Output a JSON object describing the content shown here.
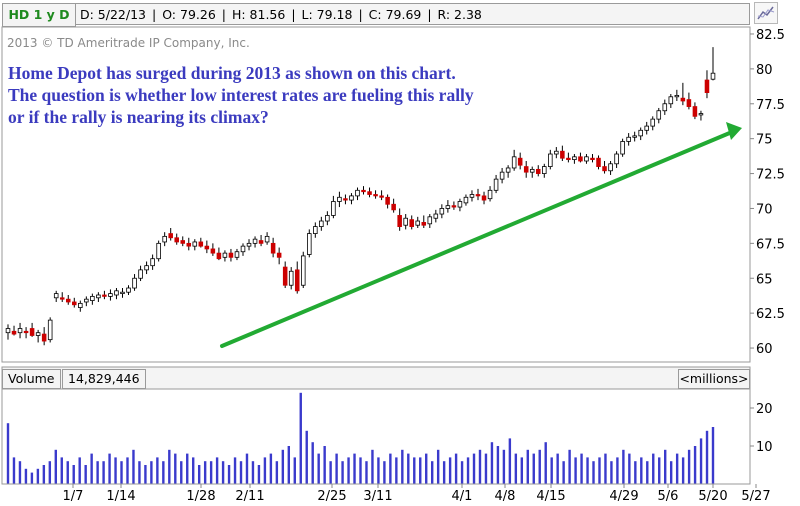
{
  "header": {
    "ticker_label": "HD 1 y D",
    "date": "D: 5/22/13",
    "open": "O: 79.26",
    "high": "H: 81.56",
    "low": "L: 79.18",
    "close": "C: 79.69",
    "range": "R: 2.38"
  },
  "copyright": "2013 © TD Ameritrade IP Company, Inc.",
  "annotation": "Home Depot has surged during 2013 as shown on this chart. The question is whether low interest rates are fueling this rally or if the rally is nearing its climax?",
  "volume_panel": {
    "label": "Volume",
    "value": "14,829,446",
    "units": "<millions>"
  },
  "colors": {
    "up_fill": "#ffffff",
    "down_fill": "#cc0000",
    "candle_outline": "#000000",
    "volume_bar": "#3a3acc",
    "trendline": "#22aa33",
    "annotation_text": "#3b3bbf",
    "ticker_text": "#1e8a1e"
  },
  "chart_data": [
    {
      "type": "candlestick",
      "ylim": [
        59,
        83
      ],
      "yticks": [
        60,
        62.5,
        65,
        67.5,
        70,
        72.5,
        75,
        77.5,
        80,
        82.5
      ],
      "ytick_labels": [
        "60",
        "62.5",
        "65",
        "67.5",
        "70",
        "72.5",
        "75",
        "77.5",
        "80",
        "82.5"
      ],
      "xtick_labels": [
        "1/7",
        "1/14",
        "1/28",
        "2/11",
        "2/25",
        "3/11",
        "4/1",
        "4/8",
        "4/15",
        "4/29",
        "5/6",
        "5/20",
        "5/27"
      ],
      "candles": [
        {
          "o": 61.1,
          "h": 61.7,
          "l": 60.6,
          "c": 61.4
        },
        {
          "o": 61.2,
          "h": 61.6,
          "l": 60.9,
          "c": 61.0
        },
        {
          "o": 61.1,
          "h": 61.8,
          "l": 60.7,
          "c": 61.4
        },
        {
          "o": 61.2,
          "h": 61.5,
          "l": 60.7,
          "c": 61.1
        },
        {
          "o": 61.4,
          "h": 61.8,
          "l": 60.8,
          "c": 60.9
        },
        {
          "o": 60.9,
          "h": 61.3,
          "l": 60.4,
          "c": 61.1
        },
        {
          "o": 61.0,
          "h": 61.5,
          "l": 60.2,
          "c": 60.5
        },
        {
          "o": 60.6,
          "h": 62.2,
          "l": 60.4,
          "c": 62.0
        },
        {
          "o": 63.6,
          "h": 64.1,
          "l": 63.3,
          "c": 63.9
        },
        {
          "o": 63.6,
          "h": 64.0,
          "l": 63.3,
          "c": 63.5
        },
        {
          "o": 63.5,
          "h": 63.8,
          "l": 63.1,
          "c": 63.3
        },
        {
          "o": 63.3,
          "h": 63.6,
          "l": 62.9,
          "c": 63.1
        },
        {
          "o": 62.9,
          "h": 63.4,
          "l": 62.6,
          "c": 63.2
        },
        {
          "o": 63.3,
          "h": 63.7,
          "l": 63.0,
          "c": 63.5
        },
        {
          "o": 63.4,
          "h": 63.9,
          "l": 63.1,
          "c": 63.7
        },
        {
          "o": 63.6,
          "h": 64.0,
          "l": 63.3,
          "c": 63.8
        },
        {
          "o": 63.8,
          "h": 64.1,
          "l": 63.5,
          "c": 63.7
        },
        {
          "o": 63.7,
          "h": 64.2,
          "l": 63.4,
          "c": 63.9
        },
        {
          "o": 63.8,
          "h": 64.3,
          "l": 63.5,
          "c": 64.1
        },
        {
          "o": 63.9,
          "h": 64.3,
          "l": 63.6,
          "c": 64.0
        },
        {
          "o": 64.0,
          "h": 64.5,
          "l": 63.8,
          "c": 64.3
        },
        {
          "o": 64.3,
          "h": 65.3,
          "l": 64.1,
          "c": 65.0
        },
        {
          "o": 65.0,
          "h": 65.9,
          "l": 64.8,
          "c": 65.6
        },
        {
          "o": 65.6,
          "h": 66.2,
          "l": 65.3,
          "c": 65.9
        },
        {
          "o": 65.9,
          "h": 66.7,
          "l": 65.6,
          "c": 66.4
        },
        {
          "o": 66.4,
          "h": 67.7,
          "l": 66.2,
          "c": 67.5
        },
        {
          "o": 67.6,
          "h": 68.3,
          "l": 67.3,
          "c": 68.0
        },
        {
          "o": 68.2,
          "h": 68.6,
          "l": 67.7,
          "c": 67.9
        },
        {
          "o": 67.9,
          "h": 68.2,
          "l": 67.4,
          "c": 67.6
        },
        {
          "o": 67.7,
          "h": 68.0,
          "l": 67.3,
          "c": 67.5
        },
        {
          "o": 67.5,
          "h": 67.9,
          "l": 67.0,
          "c": 67.3
        },
        {
          "o": 67.3,
          "h": 67.8,
          "l": 67.0,
          "c": 67.6
        },
        {
          "o": 67.6,
          "h": 67.9,
          "l": 67.2,
          "c": 67.3
        },
        {
          "o": 67.3,
          "h": 67.7,
          "l": 66.8,
          "c": 67.1
        },
        {
          "o": 67.1,
          "h": 67.5,
          "l": 66.6,
          "c": 66.8
        },
        {
          "o": 66.8,
          "h": 67.2,
          "l": 66.3,
          "c": 66.4
        },
        {
          "o": 66.5,
          "h": 67.0,
          "l": 66.2,
          "c": 66.8
        },
        {
          "o": 66.8,
          "h": 67.1,
          "l": 66.2,
          "c": 66.5
        },
        {
          "o": 66.5,
          "h": 67.1,
          "l": 66.3,
          "c": 66.9
        },
        {
          "o": 66.9,
          "h": 67.5,
          "l": 66.6,
          "c": 67.3
        },
        {
          "o": 67.3,
          "h": 67.8,
          "l": 67.0,
          "c": 67.5
        },
        {
          "o": 67.5,
          "h": 68.0,
          "l": 67.2,
          "c": 67.8
        },
        {
          "o": 67.7,
          "h": 68.1,
          "l": 67.3,
          "c": 67.5
        },
        {
          "o": 67.6,
          "h": 68.3,
          "l": 67.4,
          "c": 68.0
        },
        {
          "o": 67.5,
          "h": 67.9,
          "l": 66.5,
          "c": 66.8
        },
        {
          "o": 66.8,
          "h": 67.2,
          "l": 66.0,
          "c": 66.5
        },
        {
          "o": 65.8,
          "h": 66.2,
          "l": 64.3,
          "c": 64.5
        },
        {
          "o": 64.5,
          "h": 65.8,
          "l": 64.2,
          "c": 65.5
        },
        {
          "o": 65.6,
          "h": 66.2,
          "l": 63.9,
          "c": 64.1
        },
        {
          "o": 64.5,
          "h": 66.9,
          "l": 64.3,
          "c": 66.6
        },
        {
          "o": 66.7,
          "h": 68.5,
          "l": 66.5,
          "c": 68.2
        },
        {
          "o": 68.2,
          "h": 69.0,
          "l": 67.9,
          "c": 68.7
        },
        {
          "o": 68.7,
          "h": 69.4,
          "l": 68.4,
          "c": 69.1
        },
        {
          "o": 69.1,
          "h": 69.8,
          "l": 68.8,
          "c": 69.5
        },
        {
          "o": 69.5,
          "h": 70.9,
          "l": 69.3,
          "c": 70.5
        },
        {
          "o": 70.5,
          "h": 71.2,
          "l": 70.1,
          "c": 70.8
        },
        {
          "o": 70.7,
          "h": 71.0,
          "l": 70.3,
          "c": 70.6
        },
        {
          "o": 70.6,
          "h": 71.1,
          "l": 70.3,
          "c": 70.9
        },
        {
          "o": 70.9,
          "h": 71.5,
          "l": 70.6,
          "c": 71.3
        },
        {
          "o": 71.3,
          "h": 71.6,
          "l": 71.0,
          "c": 71.2
        },
        {
          "o": 71.2,
          "h": 71.5,
          "l": 70.8,
          "c": 71.0
        },
        {
          "o": 71.0,
          "h": 71.3,
          "l": 70.7,
          "c": 70.9
        },
        {
          "o": 70.9,
          "h": 71.3,
          "l": 70.6,
          "c": 70.8
        },
        {
          "o": 70.8,
          "h": 71.0,
          "l": 70.0,
          "c": 70.3
        },
        {
          "o": 70.3,
          "h": 70.7,
          "l": 69.7,
          "c": 69.9
        },
        {
          "o": 69.5,
          "h": 70.0,
          "l": 68.4,
          "c": 68.7
        },
        {
          "o": 68.8,
          "h": 69.6,
          "l": 68.5,
          "c": 69.3
        },
        {
          "o": 69.2,
          "h": 69.5,
          "l": 68.5,
          "c": 68.7
        },
        {
          "o": 68.8,
          "h": 69.4,
          "l": 68.6,
          "c": 69.1
        },
        {
          "o": 69.0,
          "h": 69.5,
          "l": 68.6,
          "c": 68.8
        },
        {
          "o": 68.9,
          "h": 69.6,
          "l": 68.6,
          "c": 69.4
        },
        {
          "o": 69.3,
          "h": 69.9,
          "l": 69.0,
          "c": 69.6
        },
        {
          "o": 69.6,
          "h": 70.3,
          "l": 69.3,
          "c": 70.0
        },
        {
          "o": 70.0,
          "h": 70.6,
          "l": 69.7,
          "c": 70.2
        },
        {
          "o": 70.2,
          "h": 70.5,
          "l": 69.9,
          "c": 70.1
        },
        {
          "o": 70.1,
          "h": 70.7,
          "l": 69.8,
          "c": 70.5
        },
        {
          "o": 70.4,
          "h": 71.0,
          "l": 70.2,
          "c": 70.8
        },
        {
          "o": 70.8,
          "h": 71.3,
          "l": 70.5,
          "c": 71.0
        },
        {
          "o": 71.0,
          "h": 71.4,
          "l": 70.6,
          "c": 70.9
        },
        {
          "o": 70.9,
          "h": 71.2,
          "l": 70.3,
          "c": 70.6
        },
        {
          "o": 70.7,
          "h": 71.6,
          "l": 70.5,
          "c": 71.3
        },
        {
          "o": 71.3,
          "h": 72.4,
          "l": 71.1,
          "c": 72.1
        },
        {
          "o": 72.1,
          "h": 72.9,
          "l": 71.8,
          "c": 72.6
        },
        {
          "o": 72.6,
          "h": 73.1,
          "l": 72.2,
          "c": 72.9
        },
        {
          "o": 72.9,
          "h": 74.2,
          "l": 72.7,
          "c": 73.7
        },
        {
          "o": 73.6,
          "h": 74.0,
          "l": 72.8,
          "c": 73.1
        },
        {
          "o": 73.0,
          "h": 73.4,
          "l": 72.2,
          "c": 72.6
        },
        {
          "o": 72.6,
          "h": 73.0,
          "l": 72.2,
          "c": 72.8
        },
        {
          "o": 72.8,
          "h": 73.1,
          "l": 72.3,
          "c": 72.5
        },
        {
          "o": 72.5,
          "h": 73.2,
          "l": 72.2,
          "c": 73.0
        },
        {
          "o": 73.0,
          "h": 74.2,
          "l": 72.8,
          "c": 73.9
        },
        {
          "o": 73.9,
          "h": 74.4,
          "l": 73.6,
          "c": 74.1
        },
        {
          "o": 74.1,
          "h": 74.5,
          "l": 73.4,
          "c": 73.6
        },
        {
          "o": 73.6,
          "h": 74.0,
          "l": 73.3,
          "c": 73.5
        },
        {
          "o": 73.5,
          "h": 73.9,
          "l": 73.2,
          "c": 73.7
        },
        {
          "o": 73.7,
          "h": 74.0,
          "l": 73.3,
          "c": 73.4
        },
        {
          "o": 73.4,
          "h": 73.9,
          "l": 73.2,
          "c": 73.7
        },
        {
          "o": 73.6,
          "h": 73.9,
          "l": 73.3,
          "c": 73.5
        },
        {
          "o": 73.6,
          "h": 73.8,
          "l": 72.8,
          "c": 73.0
        },
        {
          "o": 73.0,
          "h": 73.4,
          "l": 72.5,
          "c": 72.7
        },
        {
          "o": 72.7,
          "h": 73.4,
          "l": 72.4,
          "c": 73.2
        },
        {
          "o": 73.2,
          "h": 74.1,
          "l": 72.9,
          "c": 73.9
        },
        {
          "o": 73.9,
          "h": 75.0,
          "l": 73.7,
          "c": 74.8
        },
        {
          "o": 74.8,
          "h": 75.4,
          "l": 74.5,
          "c": 75.1
        },
        {
          "o": 75.1,
          "h": 75.5,
          "l": 74.8,
          "c": 75.2
        },
        {
          "o": 75.2,
          "h": 75.8,
          "l": 74.9,
          "c": 75.6
        },
        {
          "o": 75.6,
          "h": 76.2,
          "l": 75.3,
          "c": 75.9
        },
        {
          "o": 75.9,
          "h": 76.6,
          "l": 75.6,
          "c": 76.4
        },
        {
          "o": 76.4,
          "h": 77.2,
          "l": 76.1,
          "c": 77.0
        },
        {
          "o": 77.0,
          "h": 77.8,
          "l": 76.7,
          "c": 77.5
        },
        {
          "o": 77.5,
          "h": 78.2,
          "l": 77.2,
          "c": 78.0
        },
        {
          "o": 78.0,
          "h": 78.5,
          "l": 77.7,
          "c": 78.1
        },
        {
          "o": 77.9,
          "h": 79.0,
          "l": 77.4,
          "c": 77.7
        },
        {
          "o": 77.8,
          "h": 78.3,
          "l": 77.1,
          "c": 77.3
        },
        {
          "o": 77.3,
          "h": 77.6,
          "l": 76.4,
          "c": 76.6
        },
        {
          "o": 76.7,
          "h": 77.0,
          "l": 76.3,
          "c": 76.8
        },
        {
          "o": 79.2,
          "h": 79.9,
          "l": 77.9,
          "c": 78.3
        },
        {
          "o": 79.26,
          "h": 81.56,
          "l": 79.18,
          "c": 79.69
        }
      ]
    },
    {
      "type": "bar",
      "name": "Volume",
      "ylim": [
        0,
        25
      ],
      "yticks": [
        0,
        10,
        20
      ],
      "ytick_labels": [
        "10",
        "20"
      ],
      "values": [
        16,
        7,
        6,
        4,
        3,
        4,
        5,
        6,
        9,
        7,
        6,
        5,
        7,
        5,
        8,
        6,
        6,
        8,
        7,
        6,
        7,
        9,
        6,
        5,
        6,
        7,
        6,
        9,
        8,
        6,
        8,
        7,
        5,
        6,
        6,
        7,
        6,
        5,
        7,
        6,
        8,
        6,
        5,
        7,
        8,
        6,
        9,
        10,
        7,
        24,
        14,
        11,
        8,
        10,
        6,
        8,
        6,
        7,
        8,
        7,
        6,
        9,
        7,
        6,
        8,
        7,
        9,
        8,
        7,
        7,
        8,
        6,
        9,
        6,
        7,
        8,
        6,
        7,
        8,
        9,
        8,
        11,
        10,
        9,
        12,
        8,
        7,
        9,
        8,
        9,
        11,
        7,
        8,
        6,
        9,
        7,
        8,
        7,
        6,
        7,
        8,
        6,
        7,
        9,
        8,
        6,
        7,
        6,
        8,
        7,
        9,
        6,
        8,
        7,
        9,
        10,
        12,
        14,
        15
      ]
    }
  ]
}
